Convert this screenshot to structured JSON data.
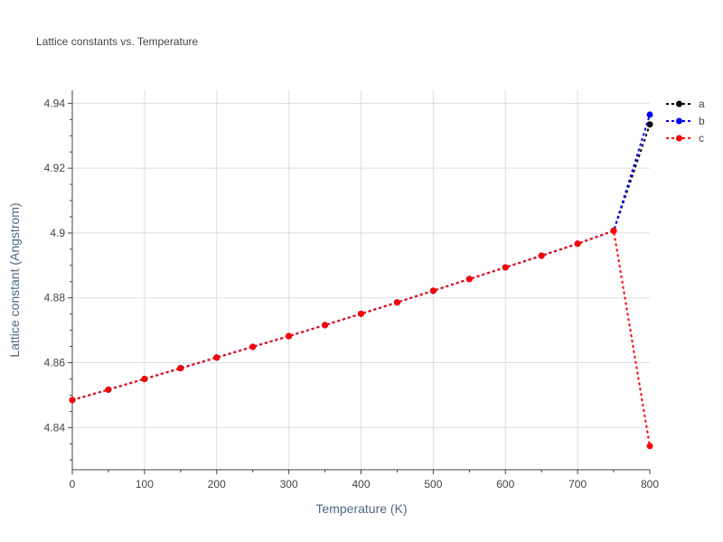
{
  "chart_data": {
    "type": "line",
    "title": "Lattice constants vs. Temperature",
    "xlabel": "Temperature (K)",
    "ylabel": "Lattice constant (Angstrom)",
    "xlim": [
      0,
      800
    ],
    "ylim": [
      4.827,
      4.944
    ],
    "x_ticks": [
      0,
      100,
      200,
      300,
      400,
      500,
      600,
      700,
      800
    ],
    "y_ticks": [
      4.84,
      4.86,
      4.88,
      4.9,
      4.92,
      4.94
    ],
    "y_tick_labels": [
      "4.84",
      "4.86",
      "4.88",
      "4.9",
      "4.92",
      "4.94"
    ],
    "grid": true,
    "legend_position": "top-right",
    "x": [
      0,
      50,
      100,
      150,
      200,
      250,
      300,
      350,
      400,
      450,
      500,
      550,
      600,
      650,
      700,
      750,
      800
    ],
    "series": [
      {
        "name": "a",
        "color": "#000000",
        "values": [
          4.8485,
          4.8517,
          4.855,
          4.8583,
          4.8616,
          4.8649,
          4.8682,
          4.8716,
          4.8751,
          4.8786,
          4.8822,
          4.8858,
          4.8894,
          4.893,
          4.8967,
          4.9007,
          4.9335
        ]
      },
      {
        "name": "b",
        "color": "#0000ff",
        "values": [
          4.8485,
          4.8517,
          4.855,
          4.8583,
          4.8616,
          4.8649,
          4.8682,
          4.8716,
          4.8751,
          4.8786,
          4.8822,
          4.8858,
          4.8894,
          4.893,
          4.8967,
          4.9007,
          4.9365
        ]
      },
      {
        "name": "c",
        "color": "#ff0000",
        "values": [
          4.8485,
          4.8517,
          4.855,
          4.8583,
          4.8616,
          4.8649,
          4.8682,
          4.8716,
          4.8751,
          4.8786,
          4.8822,
          4.8858,
          4.8894,
          4.893,
          4.8967,
          4.9007,
          4.8343
        ]
      }
    ]
  }
}
